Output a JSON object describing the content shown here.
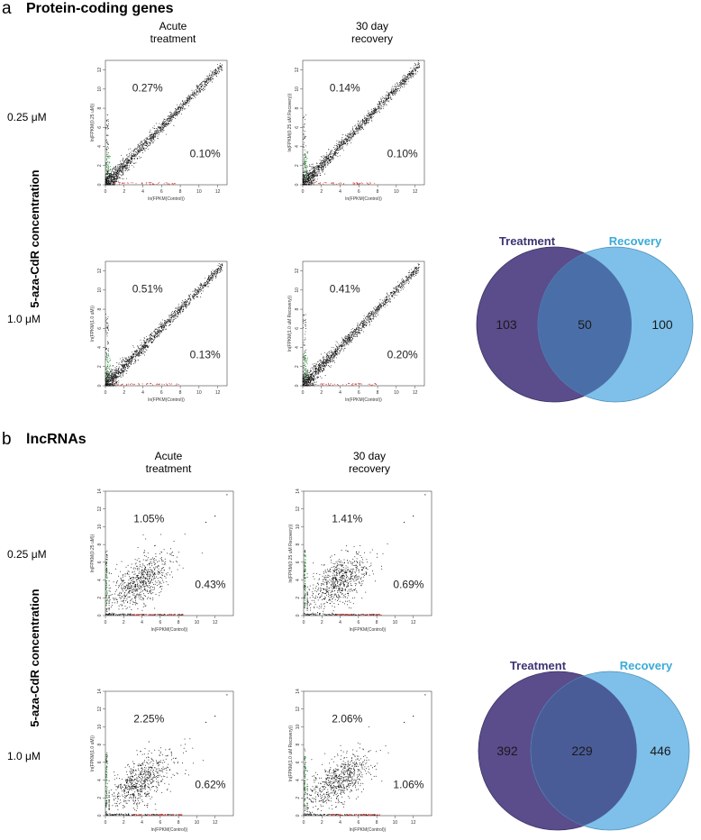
{
  "colors": {
    "point_black": "#111111",
    "point_green": "#2e9e3e",
    "point_red": "#d0312d",
    "treatment_fill": "#5b4c8c",
    "recovery_fill": "#7ec0ea",
    "overlap_fill": "#4a6fa8",
    "treatment_label": "#3b3472",
    "recovery_label": "#3aaad8"
  },
  "panels": [
    {
      "letter": "a",
      "title": "Protein-coding genes",
      "col_headers": [
        [
          "Acute",
          "treatment"
        ],
        [
          "30 day",
          "recovery"
        ]
      ],
      "row_axis_label": "5-aza-CdR concentration",
      "row_labels": [
        "0.25 μM",
        "1.0 μM"
      ],
      "venn": {
        "left_label": "Treatment",
        "right_label": "Recovery",
        "left_only": "103",
        "overlap": "50",
        "right_only": "100"
      }
    },
    {
      "letter": "b",
      "title": "lncRNAs",
      "col_headers": [
        [
          "Acute",
          "treatment"
        ],
        [
          "30 day",
          "recovery"
        ]
      ],
      "row_axis_label": "5-aza-CdR concentration",
      "row_labels": [
        "0.25 μM",
        "1.0 μM"
      ],
      "venn": {
        "left_label": "Treatment",
        "right_label": "Recovery",
        "left_only": "392",
        "overlap": "229",
        "right_only": "446"
      }
    }
  ],
  "chart_data": [
    {
      "id": "a11",
      "type": "scatter",
      "distribution": "protein",
      "n": 1500,
      "xlim": [
        0,
        13
      ],
      "ylim": [
        0,
        13
      ],
      "xticks": [
        0,
        2,
        4,
        6,
        8,
        10,
        12
      ],
      "yticks": [
        0,
        2,
        4,
        6,
        8,
        10,
        12
      ],
      "xlabel": "ln(FPKM(Control))",
      "ylabel": "ln(FPKM(0.25 uM))",
      "upper_pct": "0.27%",
      "lower_pct": "0.10%"
    },
    {
      "id": "a12",
      "type": "scatter",
      "distribution": "protein",
      "n": 1500,
      "xlim": [
        0,
        13
      ],
      "ylim": [
        0,
        13
      ],
      "xticks": [
        0,
        2,
        4,
        6,
        8,
        10,
        12
      ],
      "yticks": [
        0,
        2,
        4,
        6,
        8,
        10,
        12
      ],
      "xlabel": "ln(FPKM(Control))",
      "ylabel": "ln(FPKM(0.25 uM Recovery))",
      "upper_pct": "0.14%",
      "lower_pct": "0.10%"
    },
    {
      "id": "a21",
      "type": "scatter",
      "distribution": "protein",
      "n": 1500,
      "xlim": [
        0,
        13
      ],
      "ylim": [
        0,
        13
      ],
      "xticks": [
        0,
        2,
        4,
        6,
        8,
        10,
        12
      ],
      "yticks": [
        0,
        2,
        4,
        6,
        8,
        10,
        12
      ],
      "xlabel": "ln(FPKM(Control))",
      "ylabel": "ln(FPKM(1.0 uM))",
      "upper_pct": "0.51%",
      "lower_pct": "0.13%"
    },
    {
      "id": "a22",
      "type": "scatter",
      "distribution": "protein",
      "n": 1500,
      "xlim": [
        0,
        13
      ],
      "ylim": [
        0,
        13
      ],
      "xticks": [
        0,
        2,
        4,
        6,
        8,
        10,
        12
      ],
      "yticks": [
        0,
        2,
        4,
        6,
        8,
        10,
        12
      ],
      "xlabel": "ln(FPKM(Control))",
      "ylabel": "ln(FPKM(1.0 uM Recovery))",
      "upper_pct": "0.41%",
      "lower_pct": "0.20%"
    },
    {
      "id": "b11",
      "type": "scatter",
      "distribution": "lnc",
      "n": 700,
      "xlim": [
        0,
        14
      ],
      "ylim": [
        0,
        14
      ],
      "xticks": [
        0,
        2,
        4,
        6,
        8,
        10,
        12
      ],
      "yticks": [
        0,
        2,
        4,
        6,
        8,
        10,
        12,
        14
      ],
      "xlabel": "ln(FPKM(Control))",
      "ylabel": "ln(FPKM(0.25 uM))",
      "upper_pct": "1.05%",
      "lower_pct": "0.43%"
    },
    {
      "id": "b12",
      "type": "scatter",
      "distribution": "lnc",
      "n": 700,
      "xlim": [
        0,
        14
      ],
      "ylim": [
        0,
        14
      ],
      "xticks": [
        0,
        2,
        4,
        6,
        8,
        10,
        12
      ],
      "yticks": [
        0,
        2,
        4,
        6,
        8,
        10,
        12,
        14
      ],
      "xlabel": "ln(FPKM(Control))",
      "ylabel": "ln(FPKM(0.25 uM Recovery))",
      "upper_pct": "1.41%",
      "lower_pct": "0.69%"
    },
    {
      "id": "b21",
      "type": "scatter",
      "distribution": "lnc",
      "n": 700,
      "xlim": [
        0,
        14
      ],
      "ylim": [
        0,
        14
      ],
      "xticks": [
        0,
        2,
        4,
        6,
        8,
        10,
        12
      ],
      "yticks": [
        0,
        2,
        4,
        6,
        8,
        10,
        12,
        14
      ],
      "xlabel": "ln(FPKM(Control))",
      "ylabel": "ln(FPKM(1.0 uM))",
      "upper_pct": "2.25%",
      "lower_pct": "0.62%"
    },
    {
      "id": "b22",
      "type": "scatter",
      "distribution": "lnc",
      "n": 700,
      "xlim": [
        0,
        14
      ],
      "ylim": [
        0,
        14
      ],
      "xticks": [
        0,
        2,
        4,
        6,
        8,
        10,
        12
      ],
      "yticks": [
        0,
        2,
        4,
        6,
        8,
        10,
        12,
        14
      ],
      "xlabel": "ln(FPKM(Control))",
      "ylabel": "ln(FPKM(1.0 uM Recovery))",
      "upper_pct": "2.06%",
      "lower_pct": "1.06%"
    }
  ]
}
